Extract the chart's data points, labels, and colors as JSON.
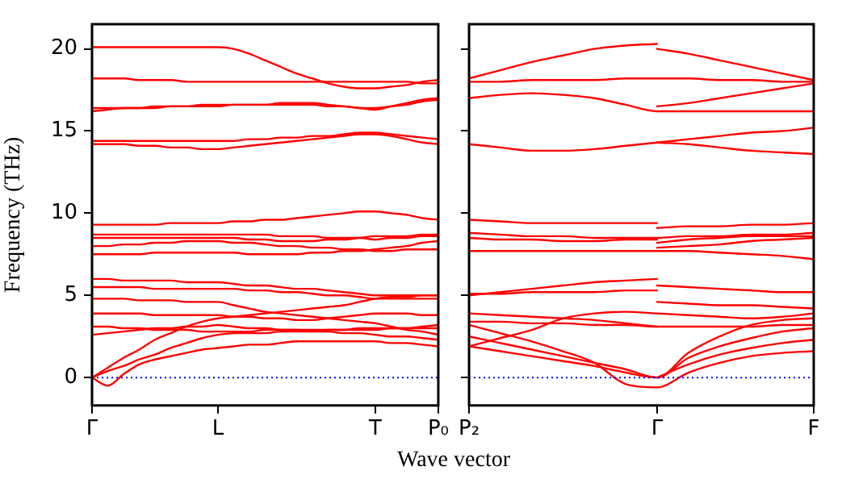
{
  "chart_data": [
    {
      "type": "line",
      "ylabel": "Frequency (THz)",
      "xlabel": "Wave vector",
      "categories": [
        "Γ",
        null,
        null,
        null,
        null,
        null,
        null,
        null,
        "L",
        null,
        null,
        null,
        null,
        null,
        null,
        null,
        null,
        null,
        "T",
        null,
        null,
        null,
        "P₀"
      ],
      "ylim": [
        -1.7,
        21.5
      ],
      "yticks": [
        0,
        5,
        10,
        15,
        20
      ],
      "grid": false,
      "legend": false,
      "marker": "none",
      "line_style": "solid",
      "ref_lines": [
        {
          "axis": "y",
          "value": 0,
          "color": "#0000ff",
          "line_style": "dotted"
        }
      ],
      "series": [
        {
          "color": "#ff0000",
          "values": [
            20.1,
            20.1,
            20.1,
            20.1,
            20.1,
            20.1,
            20.1,
            20.1,
            20.1,
            20.0,
            19.7,
            19.3,
            18.9,
            18.5,
            18.2,
            17.9,
            17.7,
            17.6,
            17.6,
            17.7,
            17.8,
            18.0,
            18.1
          ]
        },
        {
          "color": "#ff0000",
          "values": [
            18.2,
            18.2,
            18.2,
            18.1,
            18.1,
            18.1,
            18.0,
            18.0,
            18.0,
            18.0,
            18.0,
            18.0,
            18.0,
            18.0,
            18.0,
            18.0,
            18.0,
            18.0,
            18.0,
            18.0,
            18.0,
            17.9,
            17.9
          ]
        },
        {
          "color": "#ff0000",
          "values": [
            16.2,
            16.3,
            16.4,
            16.4,
            16.4,
            16.5,
            16.5,
            16.5,
            16.5,
            16.6,
            16.6,
            16.6,
            16.7,
            16.7,
            16.7,
            16.6,
            16.5,
            16.4,
            16.3,
            16.5,
            16.7,
            16.9,
            17.0
          ]
        },
        {
          "color": "#ff0000",
          "values": [
            16.4,
            16.4,
            16.4,
            16.4,
            16.5,
            16.5,
            16.5,
            16.6,
            16.6,
            16.6,
            16.6,
            16.6,
            16.6,
            16.6,
            16.6,
            16.5,
            16.5,
            16.4,
            16.4,
            16.5,
            16.6,
            16.8,
            16.9
          ]
        },
        {
          "color": "#ff0000",
          "values": [
            14.4,
            14.4,
            14.4,
            14.4,
            14.4,
            14.4,
            14.4,
            14.4,
            14.4,
            14.4,
            14.5,
            14.5,
            14.6,
            14.6,
            14.7,
            14.7,
            14.8,
            14.9,
            14.9,
            14.8,
            14.7,
            14.6,
            14.5
          ]
        },
        {
          "color": "#ff0000",
          "values": [
            14.2,
            14.2,
            14.2,
            14.1,
            14.1,
            14.0,
            14.0,
            13.9,
            13.9,
            14.0,
            14.1,
            14.2,
            14.3,
            14.4,
            14.5,
            14.6,
            14.7,
            14.8,
            14.8,
            14.7,
            14.5,
            14.3,
            14.2
          ]
        },
        {
          "color": "#ff0000",
          "values": [
            9.3,
            9.3,
            9.3,
            9.3,
            9.3,
            9.4,
            9.4,
            9.4,
            9.4,
            9.5,
            9.5,
            9.6,
            9.6,
            9.7,
            9.8,
            9.9,
            10.0,
            10.1,
            10.1,
            10.0,
            9.9,
            9.7,
            9.6
          ]
        },
        {
          "color": "#ff0000",
          "values": [
            8.7,
            8.7,
            8.7,
            8.7,
            8.7,
            8.7,
            8.7,
            8.7,
            8.7,
            8.7,
            8.7,
            8.7,
            8.6,
            8.6,
            8.6,
            8.5,
            8.5,
            8.5,
            8.4,
            8.5,
            8.5,
            8.6,
            8.6
          ]
        },
        {
          "color": "#ff0000",
          "values": [
            8.5,
            8.5,
            8.5,
            8.5,
            8.5,
            8.5,
            8.5,
            8.5,
            8.5,
            8.5,
            8.4,
            8.4,
            8.3,
            8.3,
            8.3,
            8.4,
            8.4,
            8.5,
            8.6,
            8.6,
            8.6,
            8.7,
            8.7
          ]
        },
        {
          "color": "#ff0000",
          "values": [
            8.0,
            8.0,
            8.1,
            8.1,
            8.2,
            8.2,
            8.3,
            8.3,
            8.3,
            8.2,
            8.2,
            8.1,
            8.0,
            8.0,
            7.9,
            7.9,
            7.8,
            7.8,
            7.7,
            7.7,
            7.8,
            7.8,
            7.8
          ]
        },
        {
          "color": "#ff0000",
          "values": [
            7.5,
            7.5,
            7.5,
            7.5,
            7.6,
            7.6,
            7.6,
            7.6,
            7.6,
            7.6,
            7.5,
            7.5,
            7.5,
            7.5,
            7.6,
            7.6,
            7.7,
            7.7,
            7.8,
            7.9,
            8.0,
            8.2,
            8.3
          ]
        },
        {
          "color": "#ff0000",
          "values": [
            6.0,
            6.0,
            5.9,
            5.9,
            5.9,
            5.9,
            5.8,
            5.8,
            5.8,
            5.7,
            5.6,
            5.6,
            5.5,
            5.4,
            5.4,
            5.3,
            5.2,
            5.1,
            5.0,
            5.0,
            5.0,
            5.0,
            5.0
          ]
        },
        {
          "color": "#ff0000",
          "values": [
            5.5,
            5.5,
            5.5,
            5.5,
            5.4,
            5.4,
            5.4,
            5.4,
            5.4,
            5.4,
            5.3,
            5.3,
            5.2,
            5.2,
            5.1,
            5.0,
            5.0,
            4.9,
            4.8,
            4.8,
            4.8,
            4.8,
            4.8
          ]
        },
        {
          "color": "#ff0000",
          "values": [
            4.8,
            4.8,
            4.8,
            4.7,
            4.7,
            4.7,
            4.6,
            4.6,
            4.6,
            4.4,
            4.2,
            4.0,
            3.9,
            3.8,
            3.7,
            3.6,
            3.5,
            3.4,
            3.3,
            3.1,
            2.9,
            2.8,
            2.6
          ]
        },
        {
          "color": "#ff0000",
          "values": [
            3.9,
            3.9,
            3.9,
            3.9,
            3.8,
            3.8,
            3.8,
            3.8,
            3.8,
            3.7,
            3.7,
            3.6,
            3.6,
            3.5,
            3.5,
            3.6,
            3.7,
            3.8,
            3.9,
            3.9,
            3.9,
            3.8,
            3.8
          ]
        },
        {
          "color": "#ff0000",
          "values": [
            3.1,
            3.1,
            3.0,
            3.0,
            2.9,
            2.9,
            2.9,
            2.8,
            2.8,
            2.8,
            2.8,
            2.9,
            2.9,
            2.9,
            2.9,
            2.9,
            2.9,
            2.9,
            2.9,
            3.0,
            3.0,
            3.1,
            3.2
          ]
        },
        {
          "color": "#ff0000",
          "values": [
            2.6,
            2.7,
            2.8,
            2.9,
            3.0,
            3.0,
            3.1,
            3.1,
            3.2,
            3.1,
            3.0,
            3.0,
            2.9,
            2.9,
            2.8,
            2.8,
            2.7,
            2.7,
            2.6,
            2.5,
            2.5,
            2.4,
            2.3
          ]
        },
        {
          "color": "#ff0000",
          "values": [
            0,
            0.6,
            1.2,
            1.7,
            2.3,
            2.7,
            3.1,
            3.4,
            3.6,
            3.7,
            3.8,
            3.9,
            4.0,
            4.1,
            4.2,
            4.3,
            4.4,
            4.6,
            4.8,
            4.9,
            4.9,
            5.0,
            5.0
          ]
        },
        {
          "color": "#ff0000",
          "values": [
            0,
            0.4,
            0.7,
            1.1,
            1.4,
            1.8,
            2.1,
            2.4,
            2.6,
            2.7,
            2.7,
            2.7,
            2.8,
            2.8,
            2.8,
            2.9,
            2.9,
            3.0,
            3.0,
            3.0,
            3.0,
            3.0,
            3.0
          ]
        },
        {
          "color": "#ff0000",
          "values": [
            0,
            -0.5,
            0.2,
            0.8,
            1.1,
            1.3,
            1.5,
            1.7,
            1.8,
            1.9,
            2.0,
            2.0,
            2.1,
            2.2,
            2.2,
            2.2,
            2.2,
            2.2,
            2.2,
            2.1,
            2.1,
            2.0,
            1.9
          ]
        }
      ]
    },
    {
      "type": "line",
      "categories": [
        "P₂",
        null,
        null,
        null,
        null,
        null,
        "Γ",
        null,
        null,
        null,
        null,
        "F"
      ],
      "ylim": [
        -1.7,
        21.5
      ],
      "yticks": [
        0,
        5,
        10,
        15,
        20
      ],
      "tick_labels": "x",
      "grid": false,
      "legend": false,
      "marker": "none",
      "line_style": "solid",
      "ref_lines": [
        {
          "axis": "y",
          "value": 0,
          "color": "#0000ff",
          "line_style": "dotted"
        }
      ],
      "series": [
        {
          "color": "#ff0000",
          "values": [
            18.2,
            18.7,
            19.2,
            19.6,
            20.0,
            20.2,
            20.3,
            null,
            null,
            null,
            null,
            null
          ]
        },
        {
          "color": "#ff0000",
          "values": [
            null,
            null,
            null,
            null,
            null,
            null,
            20.0,
            19.7,
            19.3,
            18.9,
            18.5,
            18.1
          ]
        },
        {
          "color": "#ff0000",
          "values": [
            18.0,
            18.0,
            18.1,
            18.1,
            18.1,
            18.2,
            18.2,
            18.2,
            18.1,
            18.1,
            18.0,
            18.0
          ]
        },
        {
          "color": "#ff0000",
          "values": [
            17.0,
            17.2,
            17.3,
            17.2,
            17.0,
            16.6,
            16.2,
            16.2,
            16.2,
            16.2,
            16.2,
            16.2
          ]
        },
        {
          "color": "#ff0000",
          "values": [
            null,
            null,
            null,
            null,
            null,
            null,
            16.5,
            16.7,
            17.0,
            17.3,
            17.6,
            17.9
          ]
        },
        {
          "color": "#ff0000",
          "values": [
            14.2,
            14.0,
            13.8,
            13.8,
            13.9,
            14.1,
            14.3,
            14.5,
            14.7,
            14.9,
            15.0,
            15.2
          ]
        },
        {
          "color": "#ff0000",
          "values": [
            null,
            null,
            null,
            null,
            null,
            null,
            14.3,
            14.2,
            14.0,
            13.8,
            13.7,
            13.6
          ]
        },
        {
          "color": "#ff0000",
          "values": [
            9.6,
            9.5,
            9.4,
            9.4,
            9.4,
            9.4,
            9.4,
            null,
            null,
            null,
            null,
            null
          ]
        },
        {
          "color": "#ff0000",
          "values": [
            null,
            null,
            null,
            null,
            null,
            null,
            9.1,
            9.2,
            9.2,
            9.3,
            9.3,
            9.4
          ]
        },
        {
          "color": "#ff0000",
          "values": [
            8.8,
            8.7,
            8.6,
            8.6,
            8.5,
            8.5,
            8.5,
            8.6,
            8.6,
            8.7,
            8.7,
            8.8
          ]
        },
        {
          "color": "#ff0000",
          "values": [
            8.5,
            8.4,
            8.4,
            8.3,
            8.3,
            8.4,
            8.4,
            null,
            null,
            null,
            null,
            null
          ]
        },
        {
          "color": "#ff0000",
          "values": [
            null,
            null,
            null,
            null,
            null,
            null,
            8.2,
            8.4,
            8.5,
            8.6,
            8.6,
            8.6
          ]
        },
        {
          "color": "#ff0000",
          "values": [
            7.7,
            7.7,
            7.7,
            7.7,
            7.7,
            7.7,
            7.7,
            7.7,
            7.6,
            7.5,
            7.4,
            7.2
          ]
        },
        {
          "color": "#ff0000",
          "values": [
            null,
            null,
            null,
            null,
            null,
            null,
            7.9,
            8.0,
            8.1,
            8.3,
            8.4,
            8.5
          ]
        },
        {
          "color": "#ff0000",
          "values": [
            5.0,
            5.2,
            5.4,
            5.6,
            5.8,
            5.9,
            6.0,
            null,
            null,
            null,
            null,
            null
          ]
        },
        {
          "color": "#ff0000",
          "values": [
            5.1,
            5.1,
            5.2,
            5.2,
            5.2,
            5.3,
            5.3,
            null,
            null,
            null,
            null,
            null
          ]
        },
        {
          "color": "#ff0000",
          "values": [
            null,
            null,
            null,
            null,
            null,
            null,
            5.6,
            5.5,
            5.4,
            5.3,
            5.2,
            5.2
          ]
        },
        {
          "color": "#ff0000",
          "values": [
            null,
            null,
            null,
            null,
            null,
            null,
            4.6,
            4.5,
            4.4,
            4.4,
            4.3,
            4.2
          ]
        },
        {
          "color": "#ff0000",
          "values": [
            3.9,
            3.8,
            3.7,
            3.6,
            3.5,
            3.3,
            3.1,
            null,
            null,
            null,
            null,
            null
          ]
        },
        {
          "color": "#ff0000",
          "values": [
            3.4,
            3.4,
            3.3,
            3.3,
            3.2,
            3.2,
            3.1,
            3.1,
            3.1,
            3.1,
            3.2,
            3.2
          ]
        },
        {
          "color": "#ff0000",
          "values": [
            1.9,
            2.4,
            2.9,
            3.6,
            3.9,
            4.0,
            3.9,
            3.8,
            3.7,
            3.6,
            3.7,
            3.9
          ]
        },
        {
          "color": "#ff0000",
          "values": [
            2.5,
            2.1,
            1.7,
            1.3,
            0.9,
            0.5,
            0,
            1.5,
            2.5,
            3.2,
            3.5,
            3.6
          ]
        },
        {
          "color": "#ff0000",
          "values": [
            1.9,
            1.6,
            1.3,
            1.0,
            0.7,
            0.3,
            0,
            1.2,
            1.9,
            2.4,
            2.8,
            3.0
          ]
        },
        {
          "color": "#ff0000",
          "values": [
            3.2,
            2.7,
            2.2,
            1.6,
            0.9,
            -0.4,
            -0.6,
            0.3,
            0.9,
            1.3,
            1.5,
            1.6
          ]
        },
        {
          "color": "#ff0000",
          "values": [
            null,
            null,
            null,
            null,
            null,
            null,
            0,
            0.8,
            1.4,
            1.8,
            2.1,
            2.3
          ]
        }
      ]
    }
  ]
}
